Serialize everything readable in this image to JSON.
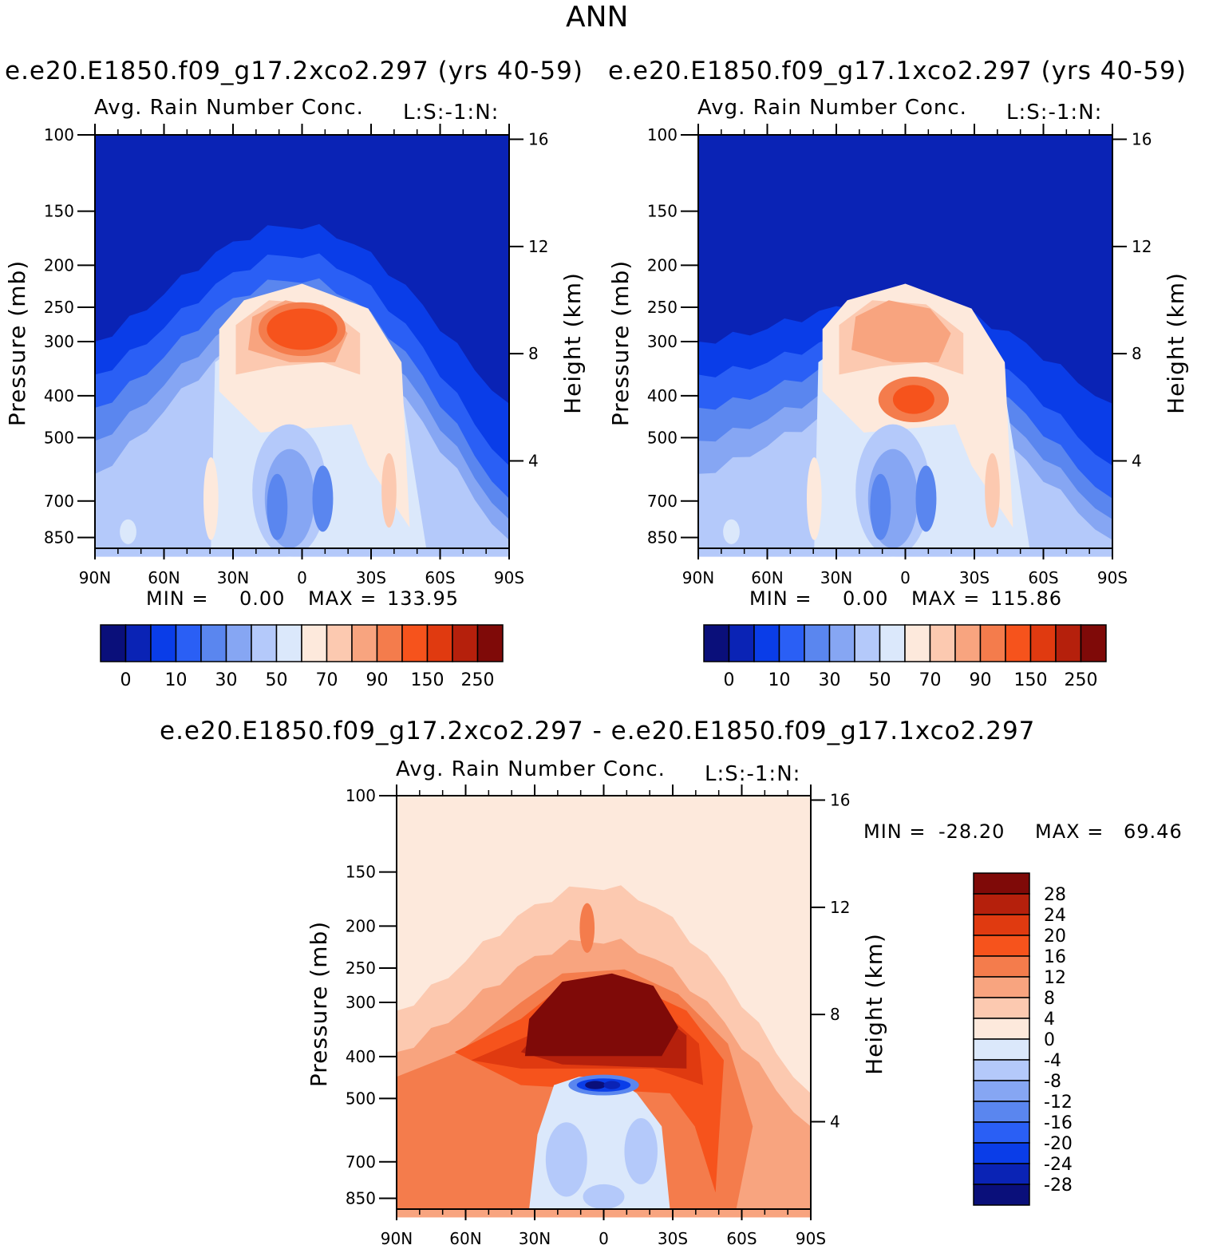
{
  "figure_title": "ANN",
  "panels": [
    {
      "case_title": "e.e20.E1850.f09_g17.2xco2.297 (yrs 40-59)",
      "plot_title": "Avg. Rain Number Conc.",
      "corner_label": "L:S:-1:N:",
      "stats": {
        "min_label": "MIN =",
        "min_value": "0.00",
        "max_label": "MAX =",
        "max_value": "133.95"
      },
      "left_axis": "Pressure (mb)",
      "right_axis": "Height (km)",
      "peak_color": "#f6531c"
    },
    {
      "case_title": "e.e20.E1850.f09_g17.1xco2.297 (yrs 40-59)",
      "plot_title": "Avg. Rain Number Conc.",
      "corner_label": "L:S:-1:N:",
      "stats": {
        "min_label": "MIN =",
        "min_value": "0.00",
        "max_label": "MAX =",
        "max_value": "115.86"
      },
      "left_axis": "Pressure (mb)",
      "right_axis": "Height (km)",
      "peak_color": "#f6531c"
    },
    {
      "case_title": "e.e20.E1850.f09_g17.2xco2.297 - e.e20.E1850.f09_g17.1xco2.297",
      "plot_title": "Avg. Rain Number Conc.",
      "corner_label": "L:S:-1:N:",
      "stats": {
        "min_label": "MIN =",
        "min_value": "-28.20",
        "max_label": "MAX =",
        "max_value": "69.46"
      },
      "left_axis": "Pressure (mb)",
      "right_axis": "Height (km)"
    }
  ],
  "chart_data": [
    {
      "type": "heatmap",
      "panel": "2xco2",
      "variable": "Avg. Rain Number Conc.",
      "x_ticks": [
        "90N",
        "60N",
        "30N",
        "0",
        "30S",
        "60S",
        "90S"
      ],
      "pressure_ticks": [
        100,
        150,
        200,
        250,
        300,
        400,
        500,
        700,
        850
      ],
      "height_ticks": [
        16,
        12,
        8,
        4
      ],
      "ylim_mb": [
        100,
        900
      ],
      "colorbar_labels": [
        "0",
        "10",
        "30",
        "50",
        "70",
        "90",
        "150",
        "250"
      ],
      "min": 0.0,
      "max": 133.95
    },
    {
      "type": "heatmap",
      "panel": "1xco2",
      "variable": "Avg. Rain Number Conc.",
      "x_ticks": [
        "90N",
        "60N",
        "30N",
        "0",
        "30S",
        "60S",
        "90S"
      ],
      "pressure_ticks": [
        100,
        150,
        200,
        250,
        300,
        400,
        500,
        700,
        850
      ],
      "height_ticks": [
        16,
        12,
        8,
        4
      ],
      "ylim_mb": [
        100,
        900
      ],
      "colorbar_labels": [
        "0",
        "10",
        "30",
        "50",
        "70",
        "90",
        "150",
        "250"
      ],
      "min": 0.0,
      "max": 115.86
    },
    {
      "type": "heatmap",
      "panel": "difference",
      "variable": "Avg. Rain Number Conc.",
      "x_ticks": [
        "90N",
        "60N",
        "30N",
        "0",
        "30S",
        "60S",
        "90S"
      ],
      "pressure_ticks": [
        100,
        150,
        200,
        250,
        300,
        400,
        500,
        700,
        850
      ],
      "height_ticks": [
        16,
        12,
        8,
        4
      ],
      "ylim_mb": [
        100,
        900
      ],
      "colorbar_labels": [
        "28",
        "24",
        "20",
        "16",
        "12",
        "8",
        "4",
        "0",
        "-4",
        "-8",
        "-12",
        "-16",
        "-20",
        "-24",
        "-28"
      ],
      "min": -28.2,
      "max": 69.46
    }
  ],
  "palette_abs": [
    "#0a0f7a",
    "#0a23b5",
    "#0a3de8",
    "#2a5ff5",
    "#5a86ef",
    "#86a6f3",
    "#b4c9fa",
    "#dbe8fb",
    "#fde9dc",
    "#fcc9b0",
    "#f8a47f",
    "#f47c4c",
    "#f6531c",
    "#e03a10",
    "#b5200c",
    "#7f0a08"
  ],
  "palette_diff": [
    "#7f0a08",
    "#b5200c",
    "#e03a10",
    "#f6531c",
    "#f47c4c",
    "#f8a47f",
    "#fcc9b0",
    "#fde9dc",
    "#dbe8fb",
    "#b4c9fa",
    "#86a6f3",
    "#5a86ef",
    "#2a5ff5",
    "#0a3de8",
    "#0a23b5",
    "#0a0f7a"
  ]
}
